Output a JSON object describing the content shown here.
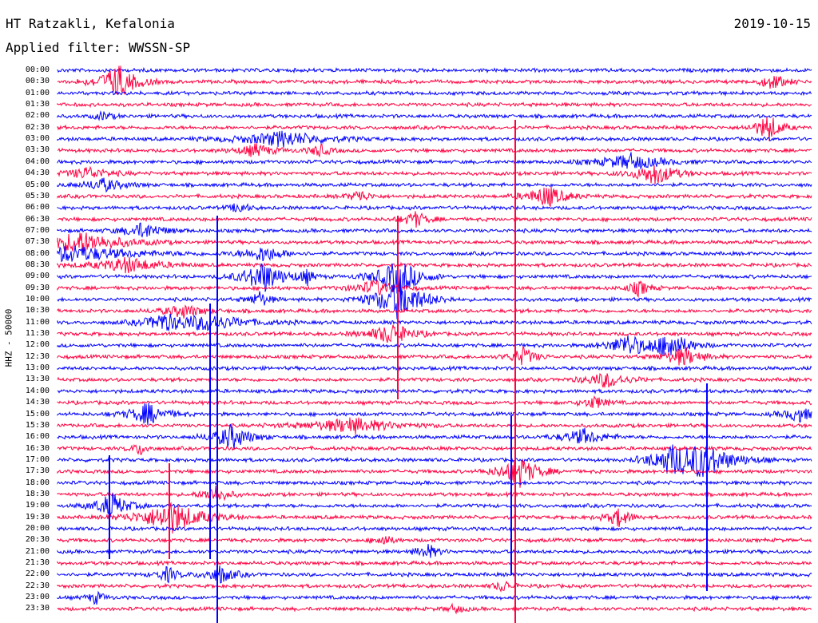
{
  "header": {
    "station": "HT Ratzakli, Kefalonia",
    "date": "2019-10-15",
    "filter": "Applied filter: WWSSN-SP"
  },
  "channel_label": "HHZ - 50000",
  "colors": {
    "odd_trace": "#0000ff",
    "even_trace": "#ff0040"
  },
  "time_labels": [
    "00:00",
    "00:30",
    "01:00",
    "01:30",
    "02:00",
    "02:30",
    "03:00",
    "03:30",
    "04:00",
    "04:30",
    "05:00",
    "05:30",
    "06:00",
    "06:30",
    "07:00",
    "07:30",
    "08:00",
    "08:30",
    "09:00",
    "09:30",
    "10:00",
    "10:30",
    "11:00",
    "11:30",
    "12:00",
    "12:30",
    "13:00",
    "13:30",
    "14:00",
    "14:30",
    "15:00",
    "15:30",
    "16:00",
    "16:30",
    "17:00",
    "17:30",
    "18:00",
    "18:30",
    "19:00",
    "19:30",
    "20:00",
    "20:30",
    "21:00",
    "21:30",
    "22:00",
    "22:30",
    "23:00",
    "23:30"
  ]
}
